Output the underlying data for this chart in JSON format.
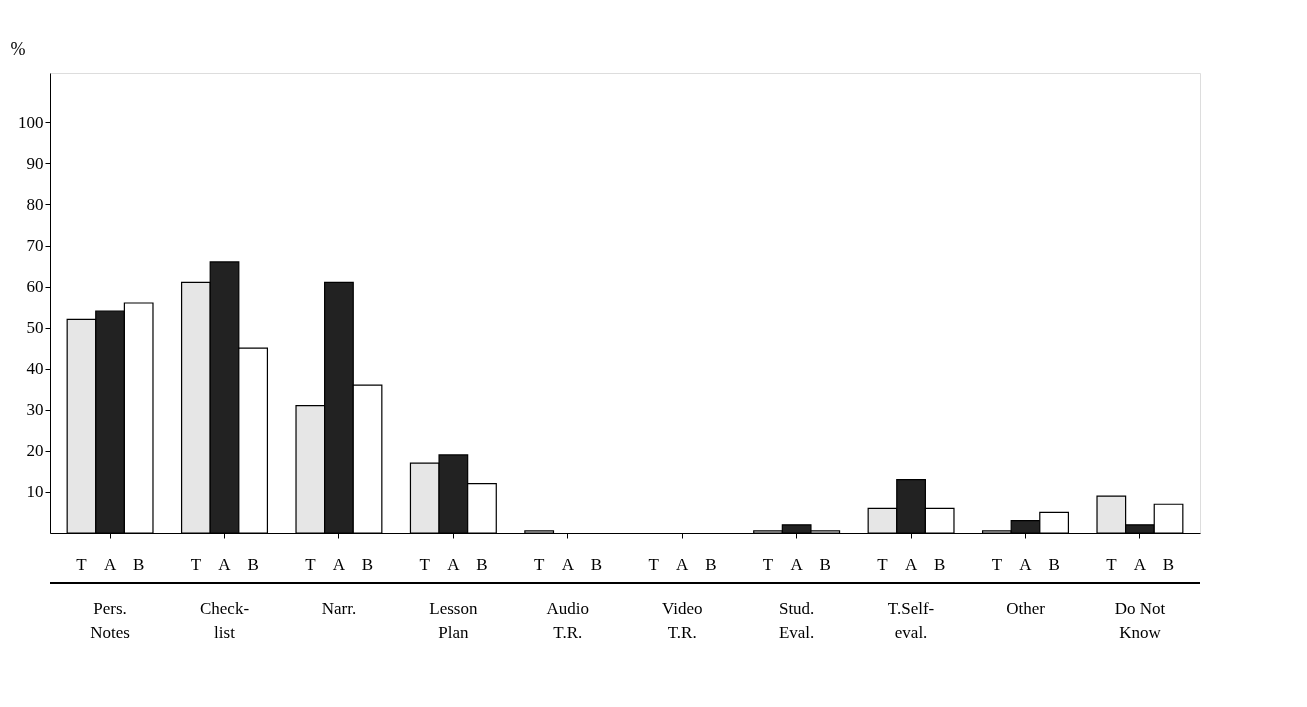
{
  "chart_data": {
    "type": "bar",
    "ylabel": "%",
    "categories": [
      "Pers.\nNotes",
      "Check-\nlist",
      "Narr.",
      "Lesson\nPlan",
      "Audio\nT.R.",
      "Video\nT.R.",
      "Stud.\nEval.",
      "T.Self-\neval.",
      "Other",
      "Do Not\nKnow"
    ],
    "series": [
      {
        "name": "T",
        "color": "#e6e6e6",
        "values": [
          52,
          61,
          31,
          17,
          0.5,
          0,
          0.5,
          6,
          0.5,
          9
        ]
      },
      {
        "name": "A",
        "color": "#222222",
        "values": [
          54,
          66,
          61,
          19,
          0,
          0,
          2,
          13,
          3,
          2
        ]
      },
      {
        "name": "B",
        "color": "#ffffff",
        "values": [
          56,
          45,
          36,
          12,
          0,
          0,
          0.5,
          6,
          5,
          7
        ]
      }
    ],
    "ylim": [
      0,
      112
    ],
    "yticks": [
      10,
      20,
      30,
      40,
      50,
      60,
      70,
      80,
      90,
      100
    ],
    "grid": false,
    "legend": "bottom"
  }
}
